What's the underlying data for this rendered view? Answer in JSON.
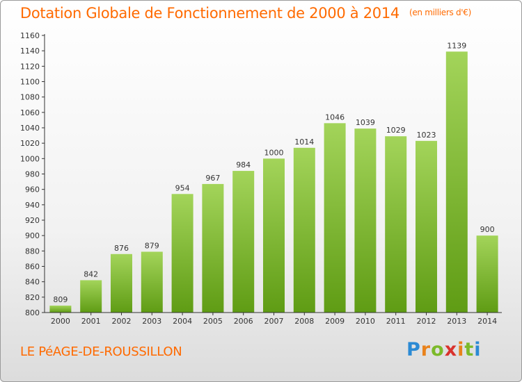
{
  "header": {
    "title": "Dotation Globale de Fonctionnement de 2000 à 2014",
    "subtitle": "(en milliers d'€)"
  },
  "footer": {
    "place": "LE PéAGE-DE-ROUSSILLON",
    "logo_text": "Proxiti"
  },
  "colors": {
    "title": "#ff6a00",
    "bar_top": "#a3d45a",
    "bar_bottom": "#5f9c14",
    "axis": "#333333",
    "label": "#333333"
  },
  "chart_data": {
    "type": "bar",
    "title": "Dotation Globale de Fonctionnement de 2000 à 2014",
    "subtitle": "(en milliers d'€)",
    "categories": [
      "2000",
      "2001",
      "2002",
      "2003",
      "2004",
      "2005",
      "2006",
      "2007",
      "2008",
      "2009",
      "2010",
      "2011",
      "2012",
      "2013",
      "2014"
    ],
    "values": [
      809,
      842,
      876,
      879,
      954,
      967,
      984,
      1000,
      1014,
      1046,
      1039,
      1029,
      1023,
      1139,
      900
    ],
    "yticks": [
      800,
      820,
      840,
      860,
      880,
      900,
      920,
      940,
      960,
      980,
      1000,
      1020,
      1040,
      1060,
      1080,
      1100,
      1120,
      1140,
      1160
    ],
    "ylim": [
      800,
      1160
    ],
    "xlabel": "",
    "ylabel": "",
    "grid": false,
    "legend": "none"
  }
}
